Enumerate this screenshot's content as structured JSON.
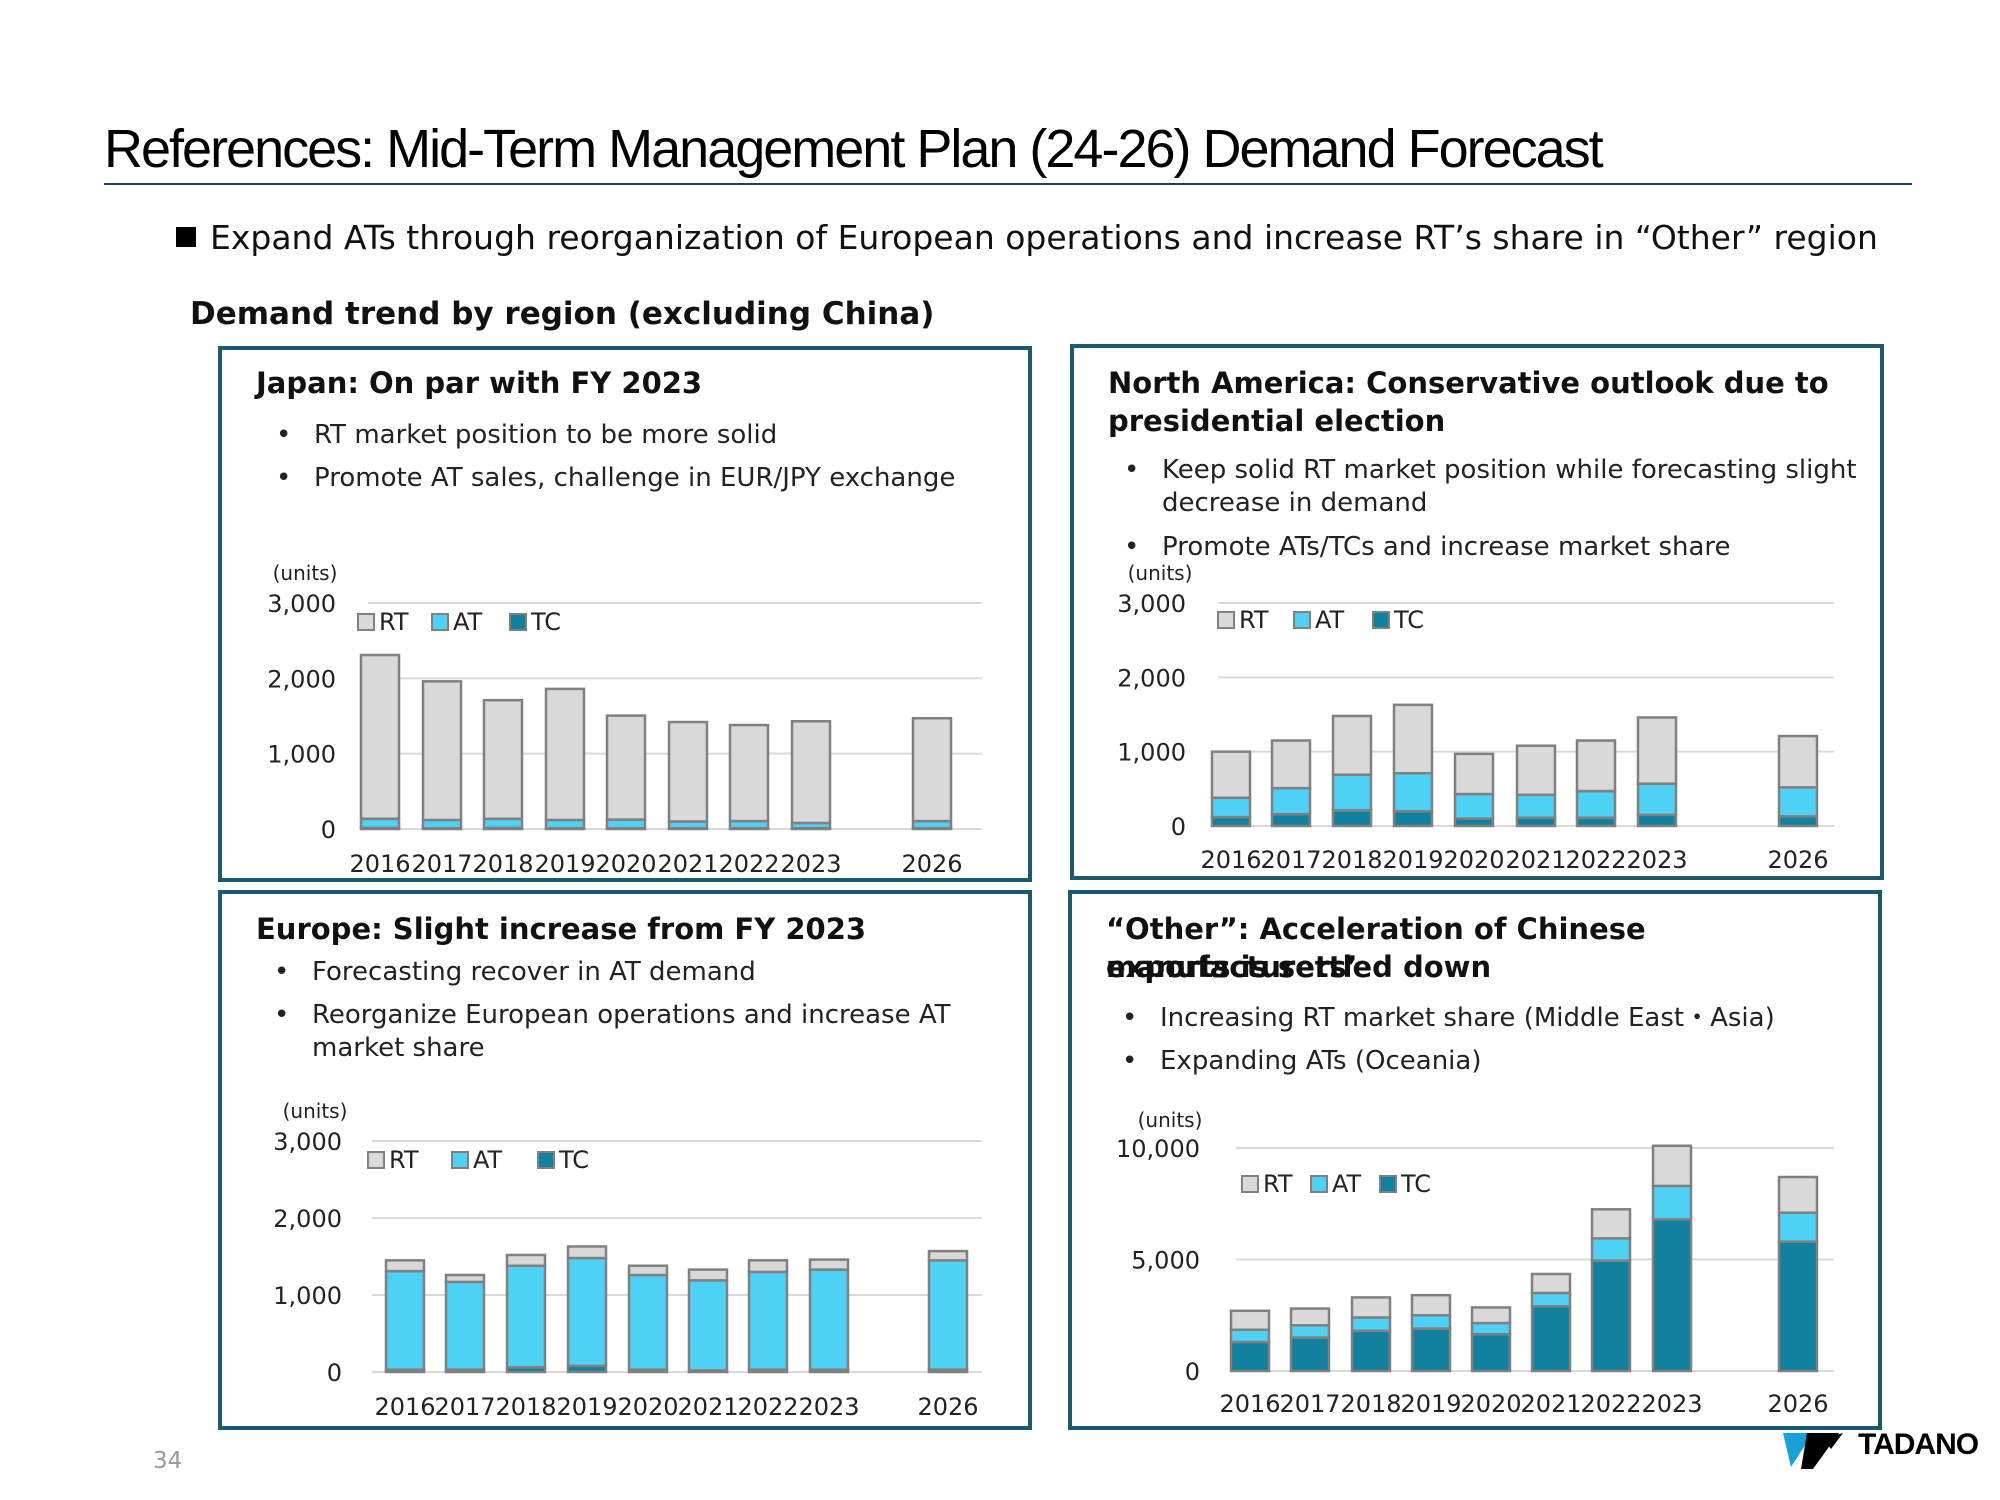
{
  "title": "References: Mid-Term Management Plan (24-26) Demand Forecast",
  "headline": "Expand ATs through reorganization of European operations and increase RT’s share in “Other” region",
  "section_title": "Demand trend by region (excluding China)",
  "page_number": "34",
  "logo_text": "TADANO",
  "colors": {
    "RT": "#d9d9d9",
    "AT": "#4dd2f5",
    "TC": "#12809f",
    "frame": "#1a5a6e",
    "bar_stroke": "#808080"
  },
  "panels": {
    "japan": {
      "title": "Japan: On par with FY 2023",
      "bullets": [
        "RT market position to be more solid",
        "Promote AT sales, challenge in EUR/JPY exchange"
      ]
    },
    "north_america": {
      "title_line1": "North America: Conservative outlook due to",
      "title_line2": "presidential election",
      "bullets": [
        "Keep solid RT market position while forecasting slight",
        "decrease in demand",
        "Promote ATs/TCs and increase market share"
      ]
    },
    "europe": {
      "title": "Europe: Slight increase from FY 2023",
      "bullets": [
        "Forecasting recover in AT demand",
        "Reorganize European operations and increase AT",
        "market share"
      ]
    },
    "other": {
      "title_line1": "“Other”: Acceleration of Chinese manufacturers’",
      "title_line2": "exports is settled down",
      "bullets": [
        "Increasing RT market share (Middle East・Asia)",
        "Expanding ATs (Oceania)"
      ]
    }
  },
  "chart_data": [
    {
      "id": "japan",
      "type": "bar",
      "stacked": true,
      "unit_label": "(units)",
      "categories": [
        "2016",
        "2017",
        "2018",
        "2019",
        "2020",
        "2021",
        "2022",
        "2023",
        "2026"
      ],
      "yticks": [
        "0",
        "1,000",
        "2,000",
        "3,000"
      ],
      "ylim": [
        0,
        3000
      ],
      "legend": [
        "RT",
        "AT",
        "TC"
      ],
      "legend_position": "top-left",
      "series": [
        {
          "name": "TC",
          "values": [
            15,
            10,
            15,
            10,
            10,
            10,
            10,
            10,
            10
          ]
        },
        {
          "name": "AT",
          "values": [
            120,
            110,
            120,
            110,
            115,
            90,
            95,
            70,
            95
          ]
        },
        {
          "name": "RT",
          "values": [
            2175,
            1840,
            1575,
            1740,
            1380,
            1320,
            1275,
            1350,
            1365
          ]
        }
      ]
    },
    {
      "id": "north_america",
      "type": "bar",
      "stacked": true,
      "unit_label": "(units)",
      "categories": [
        "2016",
        "2017",
        "2018",
        "2019",
        "2020",
        "2021",
        "2022",
        "2023",
        "2026"
      ],
      "yticks": [
        "0",
        "1,000",
        "2,000",
        "3,000"
      ],
      "ylim": [
        0,
        3000
      ],
      "legend": [
        "RT",
        "AT",
        "TC"
      ],
      "legend_position": "top-left",
      "series": [
        {
          "name": "TC",
          "values": [
            120,
            160,
            210,
            200,
            100,
            110,
            110,
            150,
            130
          ]
        },
        {
          "name": "AT",
          "values": [
            260,
            350,
            480,
            510,
            330,
            310,
            360,
            420,
            390
          ]
        },
        {
          "name": "RT",
          "values": [
            620,
            640,
            790,
            920,
            540,
            660,
            680,
            890,
            690
          ]
        }
      ]
    },
    {
      "id": "europe",
      "type": "bar",
      "stacked": true,
      "unit_label": "(units)",
      "categories": [
        "2016",
        "2017",
        "2018",
        "2019",
        "2020",
        "2021",
        "2022",
        "2023",
        "2026"
      ],
      "yticks": [
        "0",
        "1,000",
        "2,000",
        "3,000"
      ],
      "ylim": [
        0,
        3000
      ],
      "legend": [
        "RT",
        "AT",
        "TC"
      ],
      "legend_position": "top-left",
      "series": [
        {
          "name": "TC",
          "values": [
            30,
            30,
            60,
            80,
            30,
            20,
            30,
            30,
            30
          ]
        },
        {
          "name": "AT",
          "values": [
            1280,
            1140,
            1320,
            1400,
            1230,
            1170,
            1270,
            1300,
            1420
          ]
        },
        {
          "name": "RT",
          "values": [
            140,
            90,
            140,
            150,
            120,
            140,
            150,
            130,
            120
          ]
        }
      ]
    },
    {
      "id": "other",
      "type": "bar",
      "stacked": true,
      "unit_label": "(units)",
      "categories": [
        "2016",
        "2017",
        "2018",
        "2019",
        "2020",
        "2021",
        "2022",
        "2023",
        "2026"
      ],
      "yticks": [
        "0",
        "5,000",
        "10,000"
      ],
      "ylim": [
        0,
        10000
      ],
      "legend": [
        "RT",
        "AT",
        "TC"
      ],
      "legend_position": "top-left",
      "series": [
        {
          "name": "TC",
          "values": [
            1300,
            1500,
            1800,
            1900,
            1650,
            2900,
            4950,
            6800,
            5800
          ]
        },
        {
          "name": "AT",
          "values": [
            550,
            550,
            600,
            600,
            500,
            600,
            1000,
            1500,
            1300
          ]
        },
        {
          "name": "RT",
          "values": [
            850,
            750,
            900,
            900,
            700,
            850,
            1300,
            1800,
            1600
          ]
        }
      ]
    }
  ]
}
